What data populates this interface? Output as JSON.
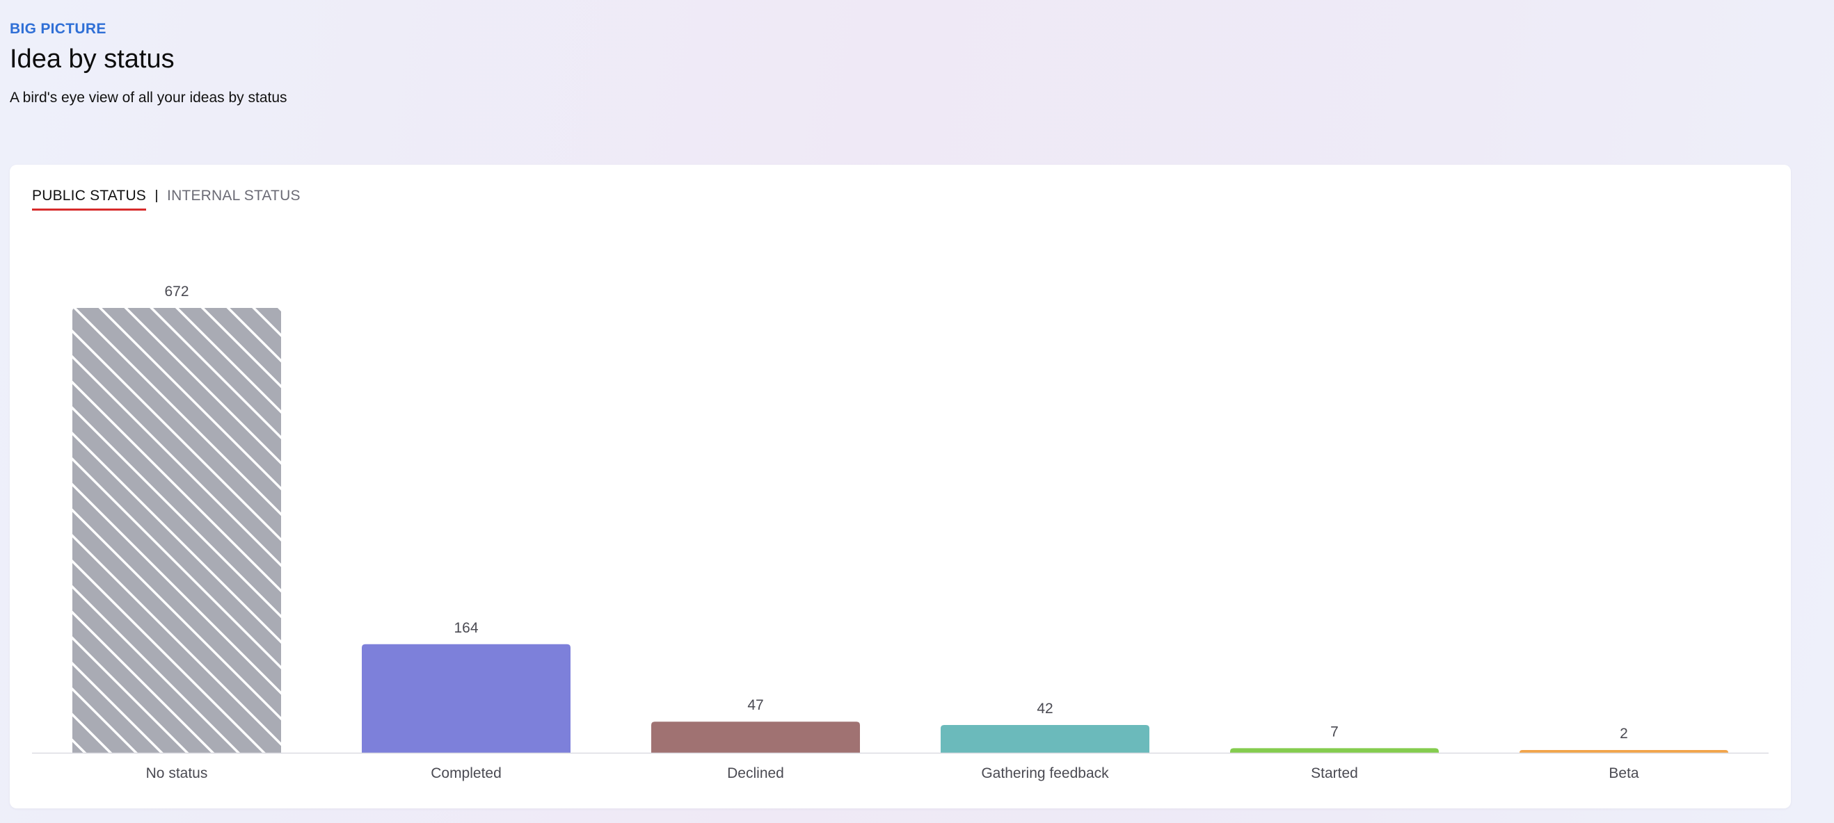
{
  "header": {
    "eyebrow": "BIG PICTURE",
    "title": "Idea by status",
    "subtitle": "A bird's eye view of all your ideas by status"
  },
  "tabs": [
    {
      "label": "PUBLIC STATUS",
      "active": true
    },
    {
      "label": "INTERNAL STATUS",
      "active": false
    }
  ],
  "colors": {
    "accent": "#2f6fd6",
    "tab_underline": "#d72b2b"
  },
  "chart_data": {
    "type": "bar",
    "categories": [
      "No status",
      "Completed",
      "Declined",
      "Gathering feedback",
      "Started",
      "Beta"
    ],
    "values": [
      672,
      164,
      47,
      42,
      7,
      2
    ],
    "colors": [
      "#a9abb4",
      "#7d80da",
      "#a07272",
      "#6bbabb",
      "#84cc4e",
      "#f2a44a"
    ],
    "patterned": [
      true,
      false,
      false,
      false,
      false,
      false
    ],
    "ylim": [
      0,
      672
    ],
    "show_data_labels": true,
    "grid": false,
    "legend": "none"
  }
}
